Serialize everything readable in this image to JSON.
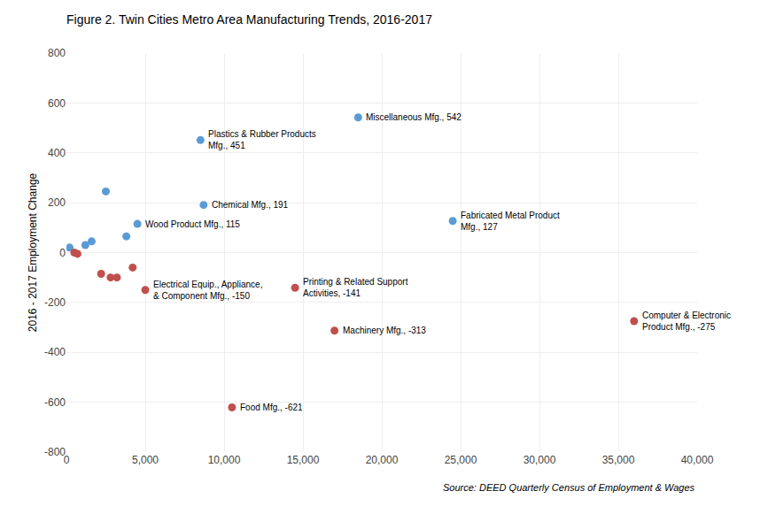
{
  "chart_data": {
    "type": "scatter",
    "title": "Figure 2. Twin Cities Metro Area Manufacturing Trends, 2016-2017",
    "ylabel": "2016 - 2017 Employment Change",
    "source": "Source: DEED Quarterly Census of Employment & Wages",
    "marker": "circle",
    "x": [
      200,
      500,
      700,
      1200,
      1600,
      2500,
      2200,
      2800,
      3200,
      3800,
      4500,
      4200,
      5000,
      8500,
      8700,
      10500,
      14500,
      18500,
      17000,
      24500,
      36000
    ],
    "values": [
      20,
      0,
      -5,
      30,
      45,
      245,
      -85,
      -100,
      -100,
      65,
      115,
      -60,
      -150,
      451,
      191,
      -621,
      -141,
      542,
      -313,
      127,
      -275
    ],
    "colors": [
      "#5B9BD5",
      "#C0504D",
      "#C0504D",
      "#5B9BD5",
      "#5B9BD5",
      "#5B9BD5",
      "#C0504D",
      "#C0504D",
      "#C0504D",
      "#5B9BD5",
      "#5B9BD5",
      "#C0504D",
      "#C0504D",
      "#5B9BD5",
      "#5B9BD5",
      "#C0504D",
      "#C0504D",
      "#5B9BD5",
      "#C0504D",
      "#5B9BD5",
      "#C0504D"
    ],
    "annotations": [
      {
        "text": "Wood Product Mfg., 115",
        "x": 4500,
        "y": 115
      },
      {
        "text": "Electrical Equip., Appliance,\n& Component Mfg., -150",
        "x": 5000,
        "y": -150
      },
      {
        "text": "Plastics & Rubber Products\nMfg., 451",
        "x": 8500,
        "y": 451
      },
      {
        "text": "Chemical Mfg., 191",
        "x": 8700,
        "y": 191
      },
      {
        "text": "Food Mfg., -621",
        "x": 10500,
        "y": -621
      },
      {
        "text": "Printing & Related Support\nActivities, -141",
        "x": 14500,
        "y": -141
      },
      {
        "text": "Miscellaneous Mfg., 542",
        "x": 18500,
        "y": 542
      },
      {
        "text": "Machinery Mfg., -313",
        "x": 17000,
        "y": -313
      },
      {
        "text": "Fabricated Metal Product\nMfg., 127",
        "x": 24500,
        "y": 127
      },
      {
        "text": "Computer & Electronic\nProduct Mfg., -275",
        "x": 36000,
        "y": -275
      }
    ],
    "xlim": [
      0,
      40000
    ],
    "ylim": [
      -800,
      800
    ],
    "xticks": [
      0,
      {
        "value": 5000,
        "label": "5,000"
      },
      {
        "value": 10000,
        "label": "10,000"
      },
      {
        "value": 15000,
        "label": "15,000"
      },
      {
        "value": 20000,
        "label": "20,000"
      },
      {
        "value": 25000,
        "label": "25,000"
      },
      {
        "value": 30000,
        "label": "30,000"
      },
      {
        "value": 35000,
        "label": "35,000"
      },
      {
        "value": 40000,
        "label": "40,000"
      }
    ],
    "yticks": [
      -800,
      -600,
      -400,
      -200,
      0,
      200,
      400,
      600,
      800
    ],
    "grid": true
  }
}
